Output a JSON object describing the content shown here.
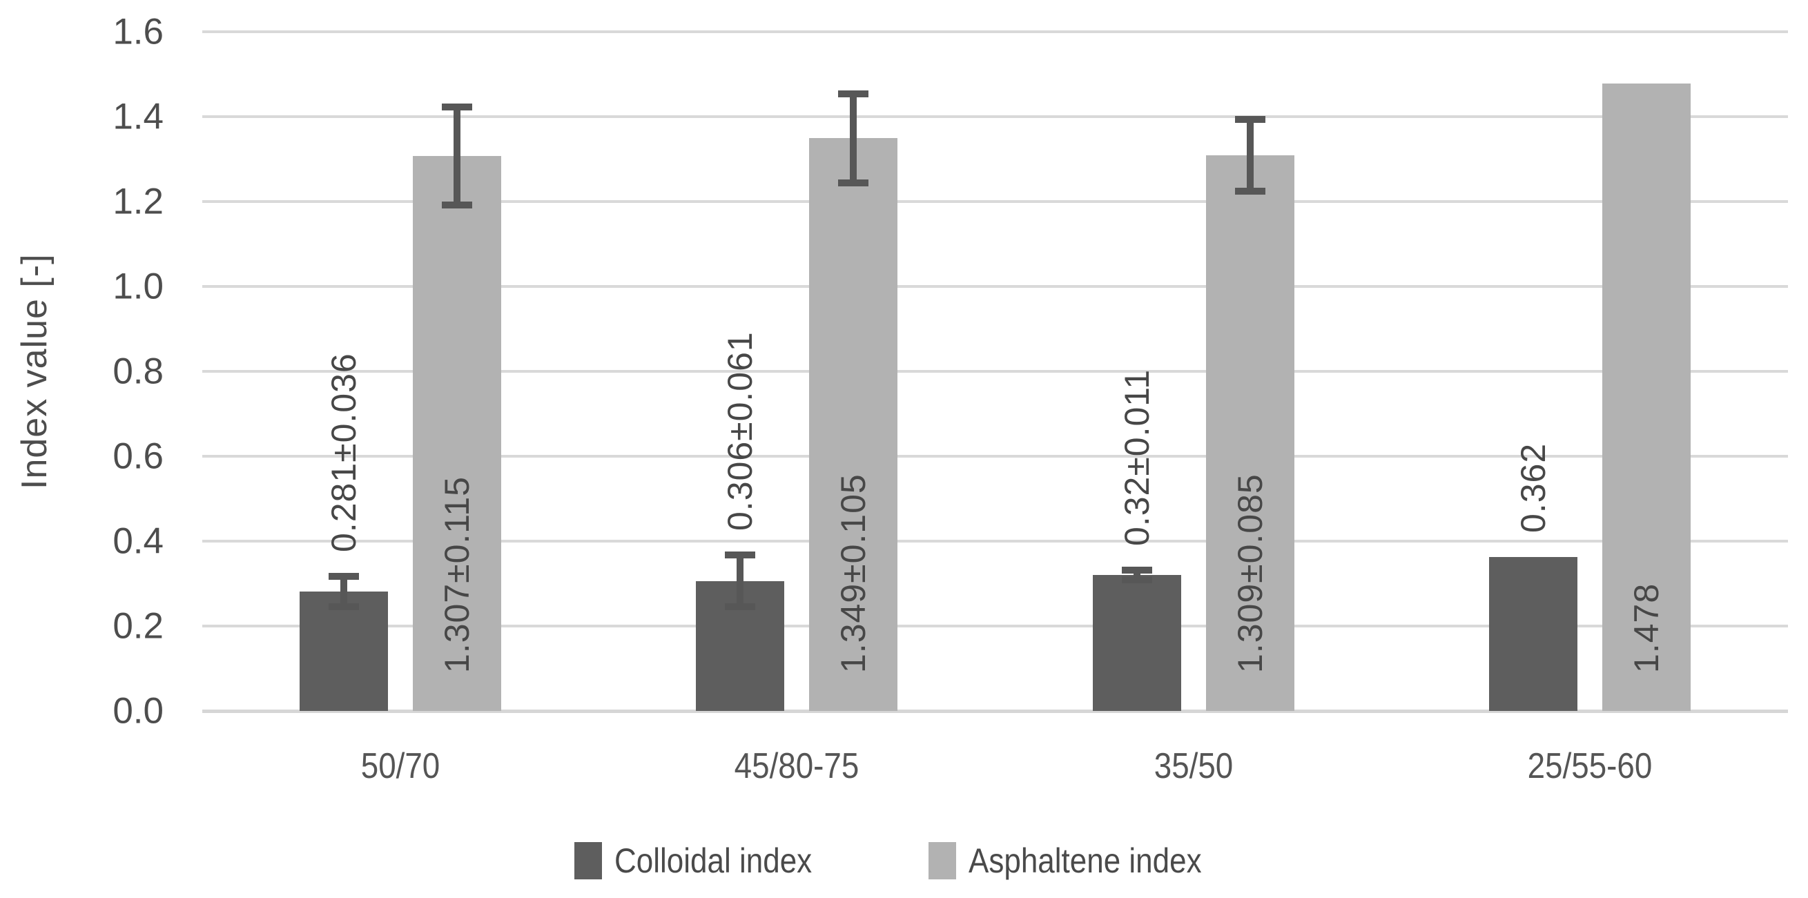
{
  "chart_data": {
    "type": "bar",
    "title": "",
    "xlabel": "",
    "ylabel": "Index value [-]",
    "ylim": [
      0,
      1.6
    ],
    "ytick_step": 0.2,
    "y_ticks": [
      "1.6",
      "1.4",
      "1.2",
      "1.0",
      "0.8",
      "0.6",
      "0.4",
      "0.2",
      "0.0"
    ],
    "categories": [
      "50/70",
      "45/80-75",
      "35/50",
      "25/55-60"
    ],
    "series": [
      {
        "name": "Colloidal index",
        "color": "#5e5e5e",
        "values": [
          0.281,
          0.306,
          0.32,
          0.362
        ],
        "errors": [
          0.036,
          0.061,
          0.011,
          null
        ],
        "labels": [
          "0.281±0.036",
          "0.306±0.061",
          "0.32±0.011",
          "0.362"
        ],
        "label_position": "above-bar-rotated"
      },
      {
        "name": "Asphaltene index",
        "color": "#b2b2b2",
        "values": [
          1.307,
          1.349,
          1.309,
          1.478
        ],
        "errors": [
          0.115,
          0.105,
          0.085,
          null
        ],
        "labels": [
          "1.307±0.115",
          "1.349±0.105",
          "1.309±0.085",
          "1.478"
        ],
        "label_position": "inside-base-rotated"
      }
    ],
    "grid": "horizontal",
    "legend_position": "bottom",
    "colors": {
      "gridline": "#d9d9d9",
      "axis_line": "#d6d6d6",
      "error_bar": "#575757",
      "tick_text": "#4d4d4d",
      "label_text": "#474747"
    }
  }
}
